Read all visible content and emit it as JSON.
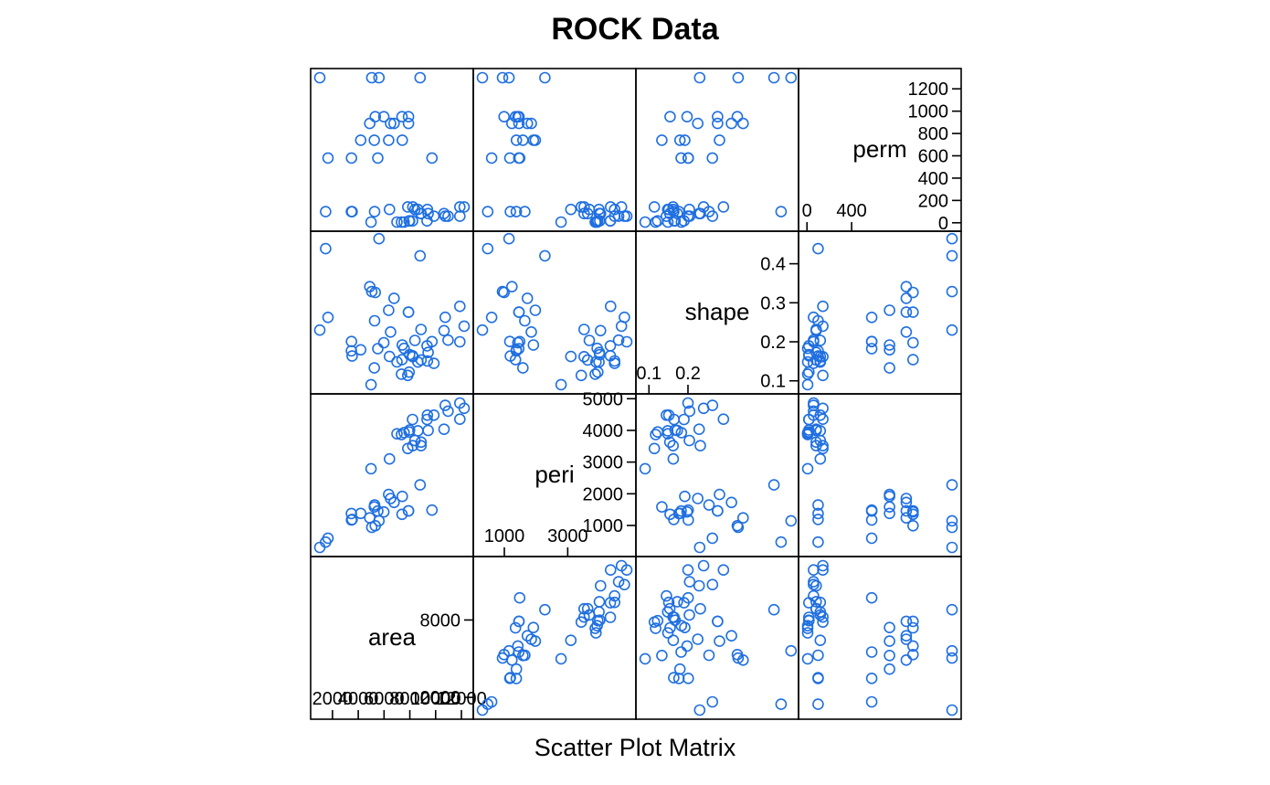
{
  "chart_data": {
    "type": "scatter",
    "title": "ROCK Data",
    "xlabel": "Scatter Plot Matrix",
    "point_color": "#1f6fe0",
    "marker": "open-circle",
    "variables": [
      {
        "name": "area",
        "range": [
          1016,
          12212
        ],
        "ticks_left": [
          2000,
          4000,
          6000,
          8000,
          10000,
          12000
        ],
        "ticks_right": [
          2000,
          8000
        ]
      },
      {
        "name": "peri",
        "range": [
          308,
          4864
        ],
        "ticks_left": [
          1000,
          3000
        ],
        "ticks_right": [
          1000,
          2000,
          3000,
          4000,
          5000
        ]
      },
      {
        "name": "shape",
        "range": [
          0.09,
          0.46
        ],
        "ticks_left": [
          0.1,
          0.2
        ],
        "ticks_right": [
          0.1,
          0.2,
          0.3,
          0.4
        ]
      },
      {
        "name": "perm",
        "range": [
          6.3,
          1300
        ],
        "ticks_left": [
          0,
          400
        ],
        "ticks_right": [
          0,
          200,
          400,
          600,
          800,
          1000,
          1200
        ]
      }
    ],
    "observations": {
      "area": [
        4990,
        7002,
        7558,
        7352,
        7943,
        7979,
        9333,
        8209,
        8393,
        6425,
        9364,
        8624,
        10651,
        8868,
        9417,
        8874,
        10962,
        10743,
        11878,
        9867,
        7838,
        11876,
        12212,
        8233,
        6360,
        4193,
        7416,
        5246,
        6509,
        4895,
        6775,
        7894,
        5980,
        5318,
        7392,
        7894,
        3469,
        1468,
        3524,
        5267,
        5048,
        1016,
        5605,
        8793,
        3475,
        1651,
        5514,
        9718
      ],
      "peri": [
        2791.9,
        3892.96,
        3930.66,
        3869.32,
        3948.54,
        4010.15,
        4345.75,
        4344.75,
        3682.04,
        3098.85,
        4480.05,
        3986.24,
        4036.54,
        3518.04,
        3999.37,
        3629.07,
        4608.66,
        4787.62,
        4864.22,
        4479.41,
        3428.74,
        4353.14,
        4697.65,
        3518.44,
        1977.39,
        1379.35,
        1916.24,
        1585.42,
        1851.21,
        1239.66,
        1728.14,
        1461.06,
        1426.76,
        990.388,
        1350.76,
        1461.06,
        1376.7,
        476.322,
        1189.46,
        1644.96,
        941.543,
        308.642,
        1145.69,
        2280.49,
        1174.11,
        597.808,
        1455.88,
        1485.58
      ],
      "shape": [
        0.0903296,
        0.148622,
        0.183312,
        0.117063,
        0.122417,
        0.167045,
        0.189651,
        0.164127,
        0.203654,
        0.162394,
        0.150944,
        0.148141,
        0.228595,
        0.231623,
        0.172567,
        0.153481,
        0.204314,
        0.262727,
        0.200071,
        0.14481,
        0.113852,
        0.291029,
        0.240077,
        0.161865,
        0.280887,
        0.179455,
        0.191802,
        0.133083,
        0.225214,
        0.341273,
        0.311646,
        0.276016,
        0.197653,
        0.326635,
        0.154192,
        0.276016,
        0.176969,
        0.438712,
        0.163586,
        0.253832,
        0.328641,
        0.230081,
        0.464125,
        0.420477,
        0.200744,
        0.262651,
        0.182453,
        0.200447
      ],
      "perm": [
        6.3,
        6.3,
        6.3,
        6.3,
        17.1,
        17.1,
        17.1,
        17.1,
        119,
        119,
        119,
        119,
        82.4,
        82.4,
        82.4,
        82.4,
        58.6,
        58.6,
        58.6,
        58.6,
        142,
        142,
        142,
        142,
        740,
        740,
        740,
        740,
        890,
        890,
        890,
        890,
        950,
        950,
        950,
        950,
        100,
        100,
        100,
        100,
        1300,
        1300,
        1300,
        1300,
        580,
        580,
        580,
        580
      ]
    }
  }
}
